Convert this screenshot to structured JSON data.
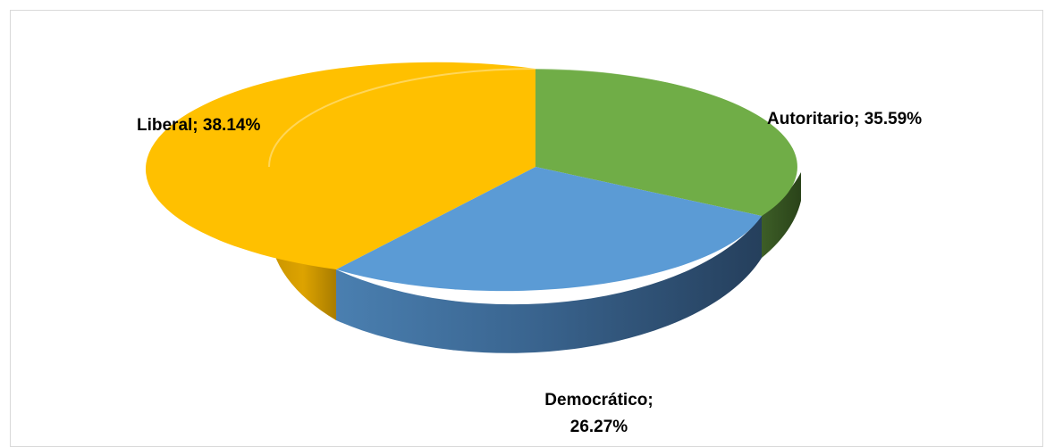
{
  "chart_data": {
    "type": "pie",
    "style": "3d",
    "title": "",
    "legend": "none",
    "slices": [
      {
        "name": "Autoritario",
        "value": 35.59,
        "label": "Autoritario; 35.59%",
        "color": "#70AD47"
      },
      {
        "name": "Democrático",
        "value": 26.27,
        "label_line1": "Democrático;",
        "label_line2": "26.27%",
        "color": "#5B9BD5"
      },
      {
        "name": "Liberal",
        "value": 38.14,
        "label": "Liberal; 38.14%",
        "color": "#FFC000"
      }
    ]
  }
}
